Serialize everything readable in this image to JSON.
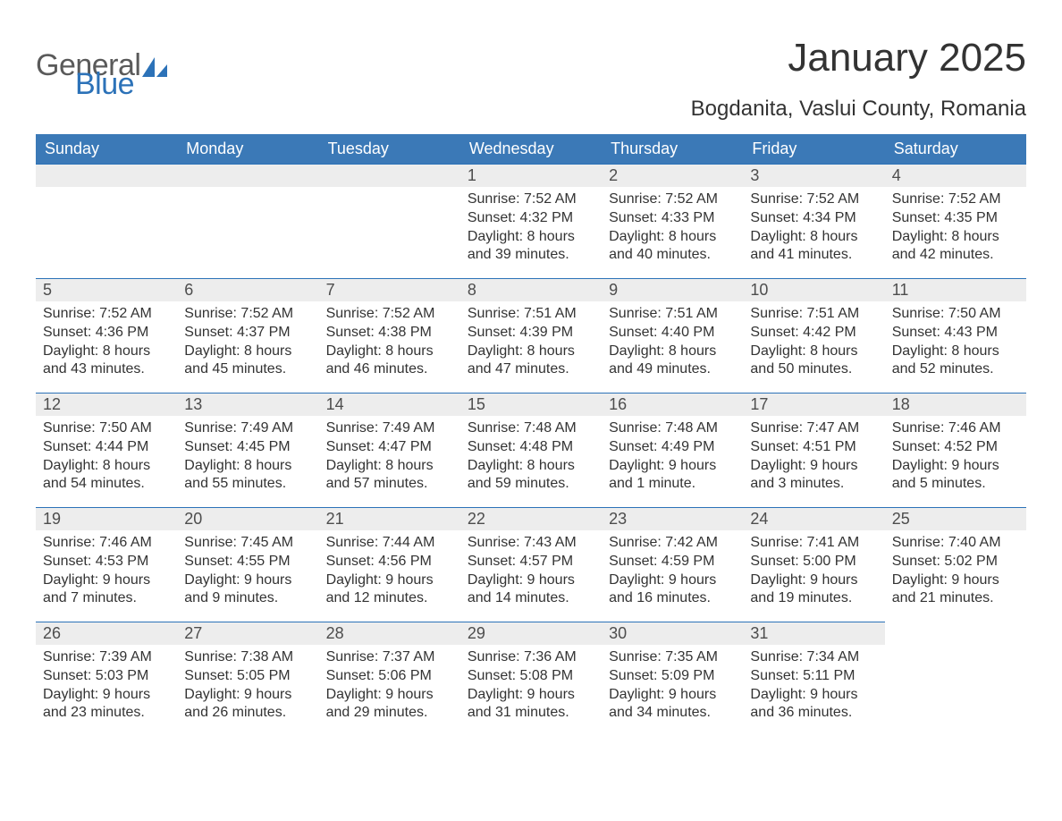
{
  "logo": {
    "text1": "General",
    "text2": "Blue"
  },
  "title": "January 2025",
  "location": "Bogdanita, Vaslui County, Romania",
  "colors": {
    "header_bg": "#3b79b7",
    "accent": "#2c72b8",
    "daynum_bg": "#ededed",
    "text": "#333333",
    "background": "#ffffff"
  },
  "weekdays": [
    "Sunday",
    "Monday",
    "Tuesday",
    "Wednesday",
    "Thursday",
    "Friday",
    "Saturday"
  ],
  "weeks": [
    [
      null,
      null,
      null,
      {
        "d": "1",
        "sr": "7:52 AM",
        "ss": "4:32 PM",
        "dl": "8 hours and 39 minutes."
      },
      {
        "d": "2",
        "sr": "7:52 AM",
        "ss": "4:33 PM",
        "dl": "8 hours and 40 minutes."
      },
      {
        "d": "3",
        "sr": "7:52 AM",
        "ss": "4:34 PM",
        "dl": "8 hours and 41 minutes."
      },
      {
        "d": "4",
        "sr": "7:52 AM",
        "ss": "4:35 PM",
        "dl": "8 hours and 42 minutes."
      }
    ],
    [
      {
        "d": "5",
        "sr": "7:52 AM",
        "ss": "4:36 PM",
        "dl": "8 hours and 43 minutes."
      },
      {
        "d": "6",
        "sr": "7:52 AM",
        "ss": "4:37 PM",
        "dl": "8 hours and 45 minutes."
      },
      {
        "d": "7",
        "sr": "7:52 AM",
        "ss": "4:38 PM",
        "dl": "8 hours and 46 minutes."
      },
      {
        "d": "8",
        "sr": "7:51 AM",
        "ss": "4:39 PM",
        "dl": "8 hours and 47 minutes."
      },
      {
        "d": "9",
        "sr": "7:51 AM",
        "ss": "4:40 PM",
        "dl": "8 hours and 49 minutes."
      },
      {
        "d": "10",
        "sr": "7:51 AM",
        "ss": "4:42 PM",
        "dl": "8 hours and 50 minutes."
      },
      {
        "d": "11",
        "sr": "7:50 AM",
        "ss": "4:43 PM",
        "dl": "8 hours and 52 minutes."
      }
    ],
    [
      {
        "d": "12",
        "sr": "7:50 AM",
        "ss": "4:44 PM",
        "dl": "8 hours and 54 minutes."
      },
      {
        "d": "13",
        "sr": "7:49 AM",
        "ss": "4:45 PM",
        "dl": "8 hours and 55 minutes."
      },
      {
        "d": "14",
        "sr": "7:49 AM",
        "ss": "4:47 PM",
        "dl": "8 hours and 57 minutes."
      },
      {
        "d": "15",
        "sr": "7:48 AM",
        "ss": "4:48 PM",
        "dl": "8 hours and 59 minutes."
      },
      {
        "d": "16",
        "sr": "7:48 AM",
        "ss": "4:49 PM",
        "dl": "9 hours and 1 minute."
      },
      {
        "d": "17",
        "sr": "7:47 AM",
        "ss": "4:51 PM",
        "dl": "9 hours and 3 minutes."
      },
      {
        "d": "18",
        "sr": "7:46 AM",
        "ss": "4:52 PM",
        "dl": "9 hours and 5 minutes."
      }
    ],
    [
      {
        "d": "19",
        "sr": "7:46 AM",
        "ss": "4:53 PM",
        "dl": "9 hours and 7 minutes."
      },
      {
        "d": "20",
        "sr": "7:45 AM",
        "ss": "4:55 PM",
        "dl": "9 hours and 9 minutes."
      },
      {
        "d": "21",
        "sr": "7:44 AM",
        "ss": "4:56 PM",
        "dl": "9 hours and 12 minutes."
      },
      {
        "d": "22",
        "sr": "7:43 AM",
        "ss": "4:57 PM",
        "dl": "9 hours and 14 minutes."
      },
      {
        "d": "23",
        "sr": "7:42 AM",
        "ss": "4:59 PM",
        "dl": "9 hours and 16 minutes."
      },
      {
        "d": "24",
        "sr": "7:41 AM",
        "ss": "5:00 PM",
        "dl": "9 hours and 19 minutes."
      },
      {
        "d": "25",
        "sr": "7:40 AM",
        "ss": "5:02 PM",
        "dl": "9 hours and 21 minutes."
      }
    ],
    [
      {
        "d": "26",
        "sr": "7:39 AM",
        "ss": "5:03 PM",
        "dl": "9 hours and 23 minutes."
      },
      {
        "d": "27",
        "sr": "7:38 AM",
        "ss": "5:05 PM",
        "dl": "9 hours and 26 minutes."
      },
      {
        "d": "28",
        "sr": "7:37 AM",
        "ss": "5:06 PM",
        "dl": "9 hours and 29 minutes."
      },
      {
        "d": "29",
        "sr": "7:36 AM",
        "ss": "5:08 PM",
        "dl": "9 hours and 31 minutes."
      },
      {
        "d": "30",
        "sr": "7:35 AM",
        "ss": "5:09 PM",
        "dl": "9 hours and 34 minutes."
      },
      {
        "d": "31",
        "sr": "7:34 AM",
        "ss": "5:11 PM",
        "dl": "9 hours and 36 minutes."
      },
      null
    ]
  ],
  "labels": {
    "sunrise": "Sunrise: ",
    "sunset": "Sunset: ",
    "daylight": "Daylight: "
  }
}
